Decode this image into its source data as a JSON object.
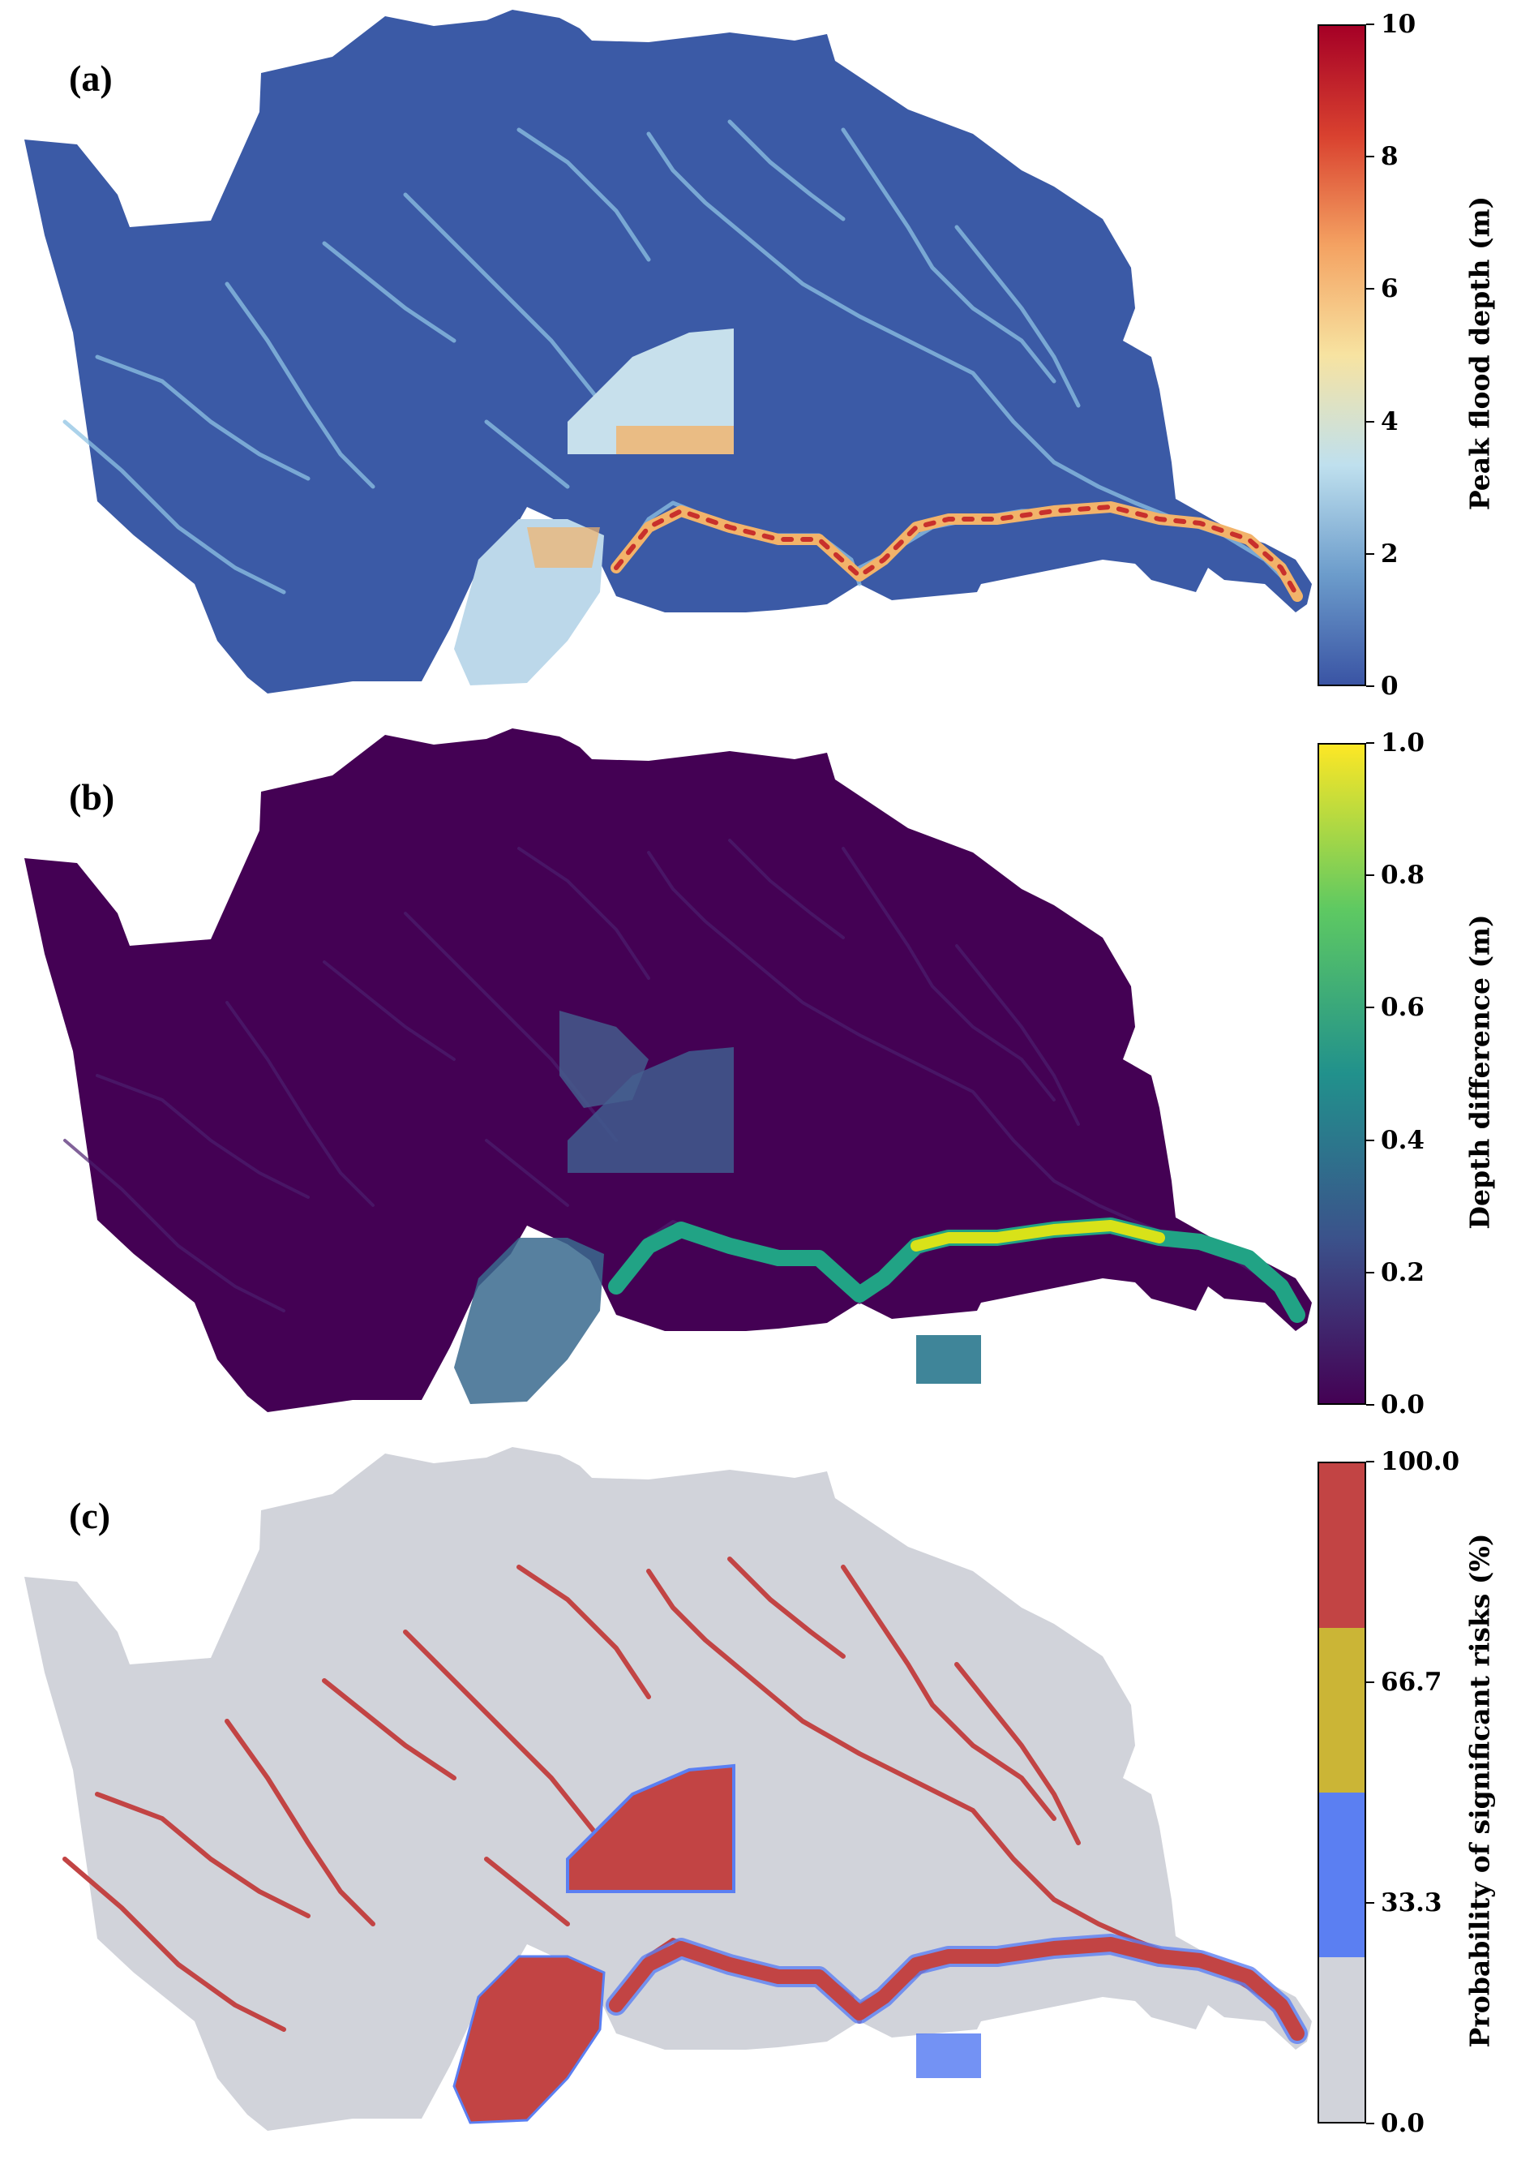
{
  "panels": [
    {
      "label": "(a)",
      "colorbar": {
        "title": "Peak flood depth (m)",
        "ticks": [
          "10",
          "8",
          "6",
          "4",
          "2",
          "0"
        ],
        "range": [
          0,
          10
        ],
        "colormap": "RdYlBu_r",
        "colors": [
          "#3a54a4",
          "#6c9ccb",
          "#bfe0ee",
          "#f7e3a1",
          "#f4a262",
          "#d9412f",
          "#a50026"
        ]
      },
      "map": {
        "background": "#3b5aa6",
        "river": "#8fc3e3",
        "hot": "#f2b36a",
        "peak": "#c8302c"
      }
    },
    {
      "label": "(b)",
      "colorbar": {
        "title": "Depth difference (m)",
        "ticks": [
          "1.0",
          "0.8",
          "0.6",
          "0.4",
          "0.2",
          "0.0"
        ],
        "range": [
          0,
          1
        ],
        "colormap": "viridis",
        "colors": [
          "#440154",
          "#3b528b",
          "#21918c",
          "#5ec962",
          "#fde725"
        ]
      },
      "map": {
        "background": "#440154",
        "mid": "#3d5b8c",
        "river": "#21a385",
        "peak": "#d8e219"
      }
    },
    {
      "label": "(c)",
      "colorbar": {
        "title": "Probability of significant risks (%)",
        "ticks": [
          "100.0",
          "66.7",
          "33.3",
          "0.0"
        ],
        "range": [
          0,
          100
        ],
        "classes": [
          {
            "color": "#d1d3da"
          },
          {
            "color": "#5b7ff2"
          },
          {
            "color": "#cbb536"
          },
          {
            "color": "#c24444"
          }
        ]
      },
      "map": {
        "background": "#d1d3da",
        "risk": "#c24444",
        "edge": "#5b7ff2"
      }
    }
  ]
}
